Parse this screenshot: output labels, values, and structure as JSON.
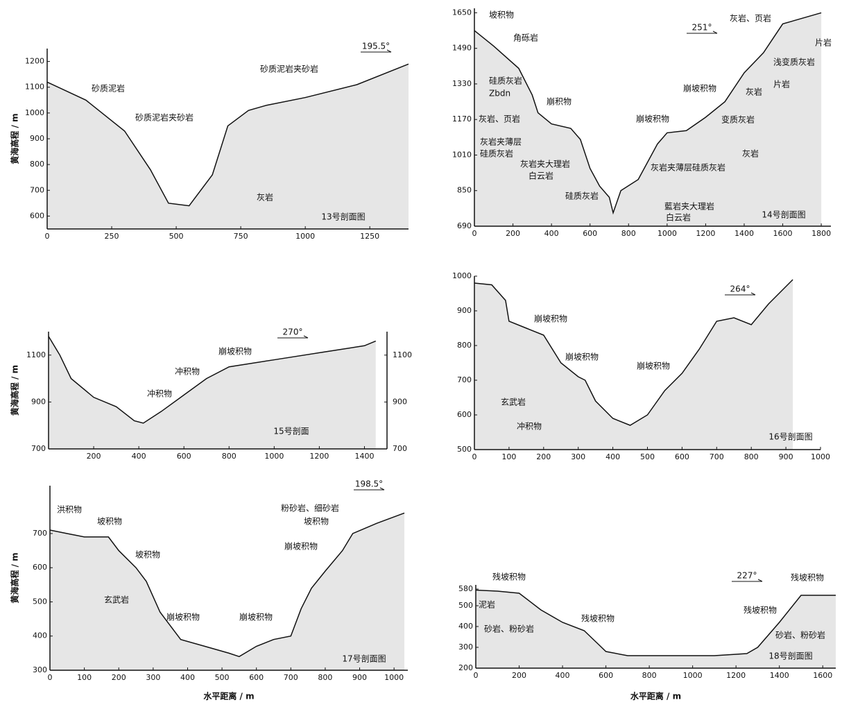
{
  "chart_data": [
    {
      "type": "line",
      "title": "13号剖面图",
      "direction": "195.5°",
      "y_label": "黄海高程 / m",
      "x": [
        0,
        150,
        300,
        400,
        470,
        550,
        640,
        700,
        780,
        850,
        1000,
        1200,
        1400
      ],
      "values": [
        1120,
        1050,
        930,
        780,
        650,
        640,
        760,
        950,
        1010,
        1030,
        1060,
        1110,
        1190
      ],
      "xlim": [
        0,
        1400
      ],
      "ylim": [
        550,
        1250
      ],
      "xticks": [
        0,
        250,
        500,
        750,
        1000,
        1250
      ],
      "yticks": [
        600,
        700,
        800,
        900,
        1000,
        1100,
        1200
      ],
      "annotations": [
        "砂质泥岩",
        "砂质泥岩夹砂岩",
        "砂质泥岩夹砂岩",
        "灰岩"
      ]
    },
    {
      "type": "line",
      "title": "14号剖面图",
      "direction": "251°",
      "x": [
        0,
        100,
        230,
        300,
        330,
        400,
        500,
        550,
        600,
        650,
        700,
        720,
        760,
        850,
        950,
        1000,
        1100,
        1200,
        1300,
        1400,
        1500,
        1600,
        1800
      ],
      "values": [
        1570,
        1500,
        1400,
        1280,
        1200,
        1150,
        1130,
        1080,
        950,
        870,
        820,
        750,
        850,
        900,
        1060,
        1110,
        1120,
        1180,
        1250,
        1380,
        1470,
        1600,
        1650
      ],
      "xlim": [
        0,
        1850
      ],
      "ylim": [
        690,
        1670
      ],
      "xticks": [
        0,
        200,
        400,
        600,
        800,
        1000,
        1200,
        1400,
        1600,
        1800
      ],
      "yticks": [
        690,
        850,
        1010,
        1170,
        1330,
        1490,
        1650
      ],
      "annotations": [
        "坡积物",
        "角砾岩",
        "硅质灰岩",
        "Zbdn",
        "崩积物",
        "灰岩、页岩",
        "灰岩夹薄层",
        "硅质灰岩",
        "灰岩夹大理岩",
        "白云岩",
        "硅质灰岩",
        "灰岩夹薄层硅质灰岩",
        "崩坡积物",
        "崩坡积物",
        "灰岩、页岩",
        "片岩",
        "浅变质灰岩",
        "灰岩",
        "片岩",
        "变质灰岩",
        "灰岩",
        "藍岩夹大理岩",
        "白云岩"
      ]
    },
    {
      "type": "line",
      "title": "15号剖面",
      "direction": "270°",
      "y_label": "黄海高程 / m",
      "x": [
        0,
        50,
        100,
        200,
        300,
        380,
        420,
        500,
        600,
        700,
        800,
        1000,
        1200,
        1400,
        1450
      ],
      "values": [
        1180,
        1100,
        1000,
        920,
        880,
        820,
        810,
        860,
        930,
        1000,
        1050,
        1080,
        1110,
        1140,
        1160
      ],
      "xlim": [
        0,
        1500
      ],
      "ylim": [
        700,
        1200
      ],
      "xticks": [
        200,
        400,
        600,
        800,
        1000,
        1200,
        1400
      ],
      "yticks": [
        700,
        900,
        1100
      ],
      "y2lim": [
        700,
        1200
      ],
      "y2ticks": [
        700,
        900,
        1100
      ],
      "annotations": [
        "崩坡积物",
        "冲积物",
        "冲积物"
      ]
    },
    {
      "type": "line",
      "title": "16号剖面图",
      "direction": "264°",
      "x": [
        0,
        50,
        90,
        100,
        150,
        200,
        250,
        300,
        320,
        350,
        400,
        450,
        500,
        550,
        600,
        650,
        700,
        750,
        800,
        850,
        920
      ],
      "values": [
        980,
        975,
        930,
        870,
        850,
        830,
        750,
        710,
        700,
        640,
        590,
        570,
        600,
        670,
        720,
        790,
        870,
        880,
        860,
        920,
        990
      ],
      "xlim": [
        0,
        1000
      ],
      "ylim": [
        500,
        1000
      ],
      "xticks": [
        0,
        100,
        200,
        300,
        400,
        500,
        600,
        700,
        800,
        900,
        1000
      ],
      "yticks": [
        500,
        600,
        700,
        800,
        900,
        1000
      ],
      "annotations": [
        "崩坡积物",
        "崩坡积物",
        "崩坡积物",
        "玄武岩",
        "冲积物"
      ]
    },
    {
      "type": "line",
      "title": "17号剖面图",
      "direction": "198.5°",
      "y_label": "黄海高程 / m",
      "x_label": "水平距离 / m",
      "x": [
        0,
        50,
        100,
        170,
        200,
        250,
        280,
        320,
        380,
        450,
        520,
        550,
        600,
        650,
        700,
        730,
        760,
        800,
        850,
        880,
        950,
        1030
      ],
      "values": [
        710,
        700,
        690,
        690,
        650,
        600,
        560,
        470,
        390,
        370,
        350,
        340,
        370,
        390,
        400,
        480,
        540,
        590,
        650,
        700,
        730,
        760
      ],
      "xlim": [
        0,
        1040
      ],
      "ylim": [
        300,
        840
      ],
      "xticks": [
        0,
        100,
        200,
        300,
        400,
        500,
        600,
        700,
        800,
        900,
        1000
      ],
      "yticks": [
        300,
        400,
        500,
        600,
        700
      ],
      "annotations": [
        "洪积物",
        "坡积物",
        "坡积物",
        "玄武岩",
        "崩坡积物",
        "崩坡积物",
        "崩坡积物",
        "粉砂岩、细砂岩",
        "坡积物"
      ]
    },
    {
      "type": "line",
      "title": "18号剖面图",
      "direction": "227°",
      "x_label": "水平距离 / m",
      "x": [
        0,
        100,
        200,
        300,
        400,
        500,
        560,
        600,
        700,
        900,
        1100,
        1250,
        1300,
        1400,
        1500,
        1660
      ],
      "values": [
        575,
        570,
        560,
        480,
        420,
        380,
        320,
        280,
        260,
        260,
        260,
        270,
        300,
        420,
        550,
        550
      ],
      "xlim": [
        0,
        1660
      ],
      "ylim": [
        200,
        600
      ],
      "xticks": [
        0,
        200,
        400,
        600,
        800,
        1000,
        1200,
        1400,
        1600
      ],
      "yticks": [
        200,
        300,
        400,
        500,
        580
      ],
      "annotations": [
        "残坡积物",
        "泥岩",
        "砂岩、粉砂岩",
        "残坡积物",
        "残坡积物",
        "残坡积物",
        "砂岩、粉砂岩"
      ]
    }
  ]
}
